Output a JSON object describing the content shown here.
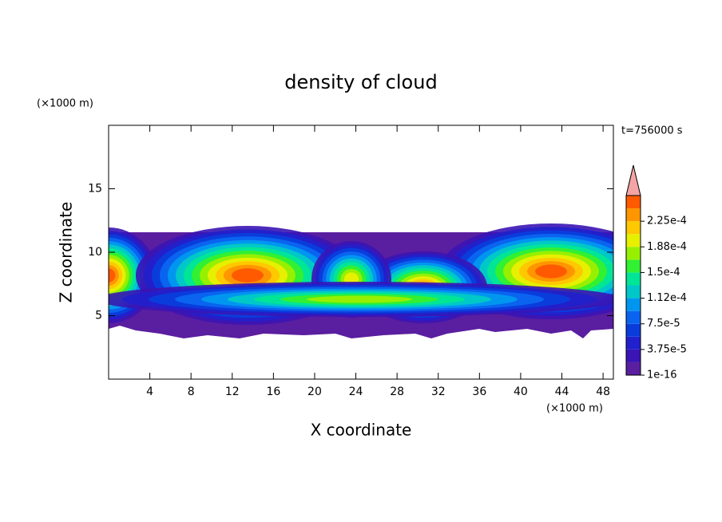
{
  "chart_data": {
    "type": "contour",
    "title": "density of cloud",
    "xlabel": "X coordinate",
    "ylabel": "Z coordinate",
    "x_unit": "(×1000 m)",
    "y_unit": "(×1000 m)",
    "annotation": "t=756000 s",
    "xlim": [
      0,
      49
    ],
    "ylim": [
      0,
      20
    ],
    "xticks": [
      4,
      8,
      12,
      16,
      20,
      24,
      28,
      32,
      36,
      40,
      44,
      48
    ],
    "yticks": [
      5,
      10,
      15
    ],
    "colorbar": {
      "clim": [
        0,
        0.0002625
      ],
      "colors": [
        "#5a1ea0",
        "#3a14b4",
        "#2020cc",
        "#0a3cdc",
        "#0a64f0",
        "#0096f0",
        "#00c8c8",
        "#00e696",
        "#32f032",
        "#96f000",
        "#e6f000",
        "#ffc800",
        "#ff9600",
        "#ff5a00"
      ],
      "over_color": "#f4a4a4",
      "ticks": [
        1e-16,
        {
          "value": 3.75e-05,
          "label": "3.75e-5"
        },
        {
          "value": 7.5e-05,
          "label": "7.5e-5"
        },
        {
          "value": 0.0001125,
          "label": "1.12e-4"
        },
        {
          "value": 0.00015,
          "label": "1.5e-4"
        },
        {
          "value": 0.0001875,
          "label": "1.88e-4"
        },
        {
          "value": 0.000225,
          "label": "2.25e-4"
        }
      ]
    }
  }
}
